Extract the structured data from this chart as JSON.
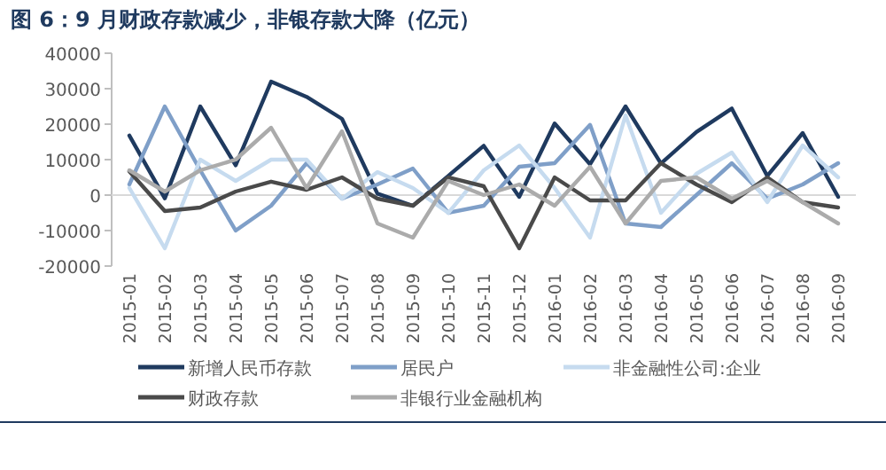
{
  "chart_data": {
    "type": "line",
    "title": "图 6：9 月财政存款减少，非银存款大降（亿元）",
    "categories": [
      "2015-01",
      "2015-02",
      "2015-03",
      "2015-04",
      "2015-05",
      "2015-06",
      "2015-07",
      "2015-08",
      "2015-09",
      "2015-10",
      "2015-11",
      "2015-12",
      "2016-01",
      "2016-02",
      "2016-03",
      "2016-04",
      "2016-05",
      "2016-06",
      "2016-07",
      "2016-08",
      "2016-09"
    ],
    "series": [
      {
        "name": "新增人民币存款",
        "color": "#1f3a5f",
        "values": [
          16800,
          -900,
          25000,
          8400,
          32000,
          27700,
          21500,
          400,
          -3000,
          5400,
          13900,
          -500,
          20200,
          8700,
          25000,
          8900,
          17800,
          24400,
          5400,
          17500,
          -500
        ]
      },
      {
        "name": "居民户",
        "color": "#7f9fc8",
        "values": [
          3000,
          25000,
          7000,
          -10000,
          -3000,
          9000,
          -1000,
          3000,
          7500,
          -5000,
          -3000,
          8000,
          9000,
          19800,
          -8000,
          -9000,
          0,
          9000,
          -1000,
          3000,
          9000
        ]
      },
      {
        "name": "非金融性公司:企业",
        "color": "#c6dbef",
        "values": [
          2000,
          -15000,
          10000,
          4000,
          10000,
          10000,
          -1000,
          6500,
          2000,
          -5000,
          7000,
          14000,
          2000,
          -12000,
          22500,
          -5000,
          6000,
          12000,
          -2000,
          14000,
          5000
        ]
      },
      {
        "name": "财政存款",
        "color": "#4a4a4a",
        "values": [
          6700,
          -4500,
          -3500,
          1000,
          3800,
          1500,
          5000,
          -1000,
          -3000,
          5000,
          2500,
          -15000,
          5000,
          -1500,
          -1500,
          9000,
          3000,
          -2000,
          5000,
          -2000,
          -3500
        ]
      },
      {
        "name": "非银行业金融机构",
        "color": "#ababab",
        "values": [
          7000,
          1000,
          7000,
          10000,
          19000,
          2000,
          18000,
          -8000,
          -12000,
          4000,
          0,
          3000,
          -3000,
          8000,
          -8000,
          4000,
          5000,
          -1000,
          4000,
          -2000,
          -8000
        ]
      }
    ],
    "ylim": [
      -20000,
      40000
    ],
    "yticks": [
      -20000,
      -10000,
      0,
      10000,
      20000,
      30000,
      40000
    ],
    "legend": "bottom"
  }
}
